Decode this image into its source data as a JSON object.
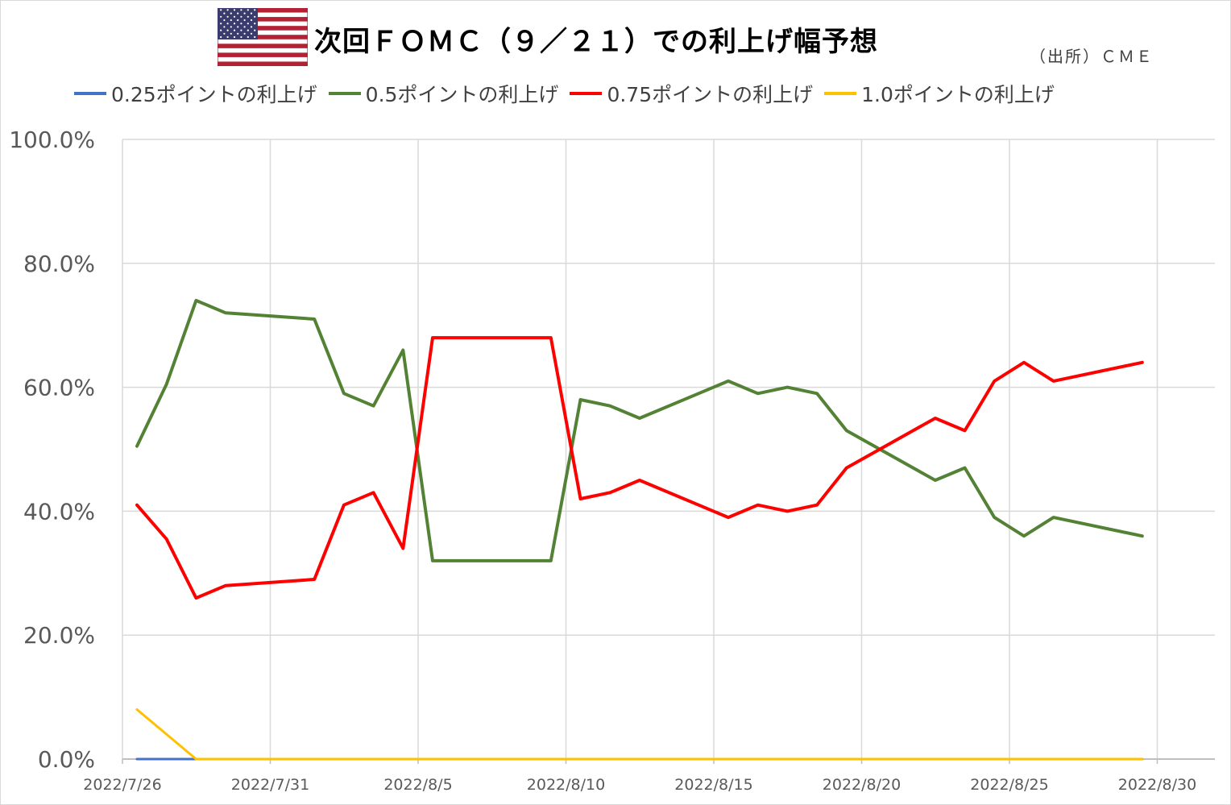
{
  "title": "次回ＦＯＭＣ（９／２１）での利上げ幅予想",
  "source": "（出所）ＣＭＥ",
  "chart_data": {
    "type": "line",
    "title": "次回ＦＯＭＣ（９／２１）での利上げ幅予想",
    "y_tick_labels": [
      "0.0%",
      "20.0%",
      "40.0%",
      "60.0%",
      "80.0%",
      "100.0%"
    ],
    "x_tick_labels": [
      "2022/7/26",
      "2022/7/31",
      "2022/8/5",
      "2022/8/10",
      "2022/8/15",
      "2022/8/20",
      "2022/8/25",
      "2022/8/30"
    ],
    "x_range": [
      "2022-07-26",
      "2022-08-30"
    ],
    "ylim": [
      0,
      100
    ],
    "grid": true,
    "legend_position": "top",
    "series": [
      {
        "name": "0.25ポイントの利上げ",
        "color": "#4472C4",
        "points": [
          [
            "2022-07-26",
            0
          ],
          [
            "2022-07-28",
            0
          ],
          [
            "2022-08-29",
            0
          ]
        ]
      },
      {
        "name": "0.5ポイントの利上げ",
        "color": "#548235",
        "points": [
          [
            "2022-07-26",
            50.5
          ],
          [
            "2022-07-27",
            60.5
          ],
          [
            "2022-07-28",
            74
          ],
          [
            "2022-07-29",
            72
          ],
          [
            "2022-08-01",
            71
          ],
          [
            "2022-08-02",
            59
          ],
          [
            "2022-08-03",
            57
          ],
          [
            "2022-08-04",
            66
          ],
          [
            "2022-08-05",
            32
          ],
          [
            "2022-08-09",
            32
          ],
          [
            "2022-08-10",
            58
          ],
          [
            "2022-08-11",
            57
          ],
          [
            "2022-08-12",
            55
          ],
          [
            "2022-08-15",
            61
          ],
          [
            "2022-08-16",
            59
          ],
          [
            "2022-08-17",
            60
          ],
          [
            "2022-08-18",
            59
          ],
          [
            "2022-08-19",
            53
          ],
          [
            "2022-08-22",
            45
          ],
          [
            "2022-08-23",
            47
          ],
          [
            "2022-08-24",
            39
          ],
          [
            "2022-08-25",
            36
          ],
          [
            "2022-08-26",
            39
          ],
          [
            "2022-08-29",
            36
          ]
        ]
      },
      {
        "name": "0.75ポイントの利上げ",
        "color": "#FF0000",
        "points": [
          [
            "2022-07-26",
            41
          ],
          [
            "2022-07-27",
            35.5
          ],
          [
            "2022-07-28",
            26
          ],
          [
            "2022-07-29",
            28
          ],
          [
            "2022-08-01",
            29
          ],
          [
            "2022-08-02",
            41
          ],
          [
            "2022-08-03",
            43
          ],
          [
            "2022-08-04",
            34
          ],
          [
            "2022-08-05",
            68
          ],
          [
            "2022-08-09",
            68
          ],
          [
            "2022-08-10",
            42
          ],
          [
            "2022-08-11",
            43
          ],
          [
            "2022-08-12",
            45
          ],
          [
            "2022-08-15",
            39
          ],
          [
            "2022-08-16",
            41
          ],
          [
            "2022-08-17",
            40
          ],
          [
            "2022-08-18",
            41
          ],
          [
            "2022-08-19",
            47
          ],
          [
            "2022-08-22",
            55
          ],
          [
            "2022-08-23",
            53
          ],
          [
            "2022-08-24",
            61
          ],
          [
            "2022-08-25",
            64
          ],
          [
            "2022-08-26",
            61
          ],
          [
            "2022-08-29",
            64
          ]
        ]
      },
      {
        "name": "1.0ポイントの利上げ",
        "color": "#FFC000",
        "points": [
          [
            "2022-07-26",
            8
          ],
          [
            "2022-07-28",
            0
          ],
          [
            "2022-08-29",
            0
          ]
        ]
      }
    ]
  }
}
